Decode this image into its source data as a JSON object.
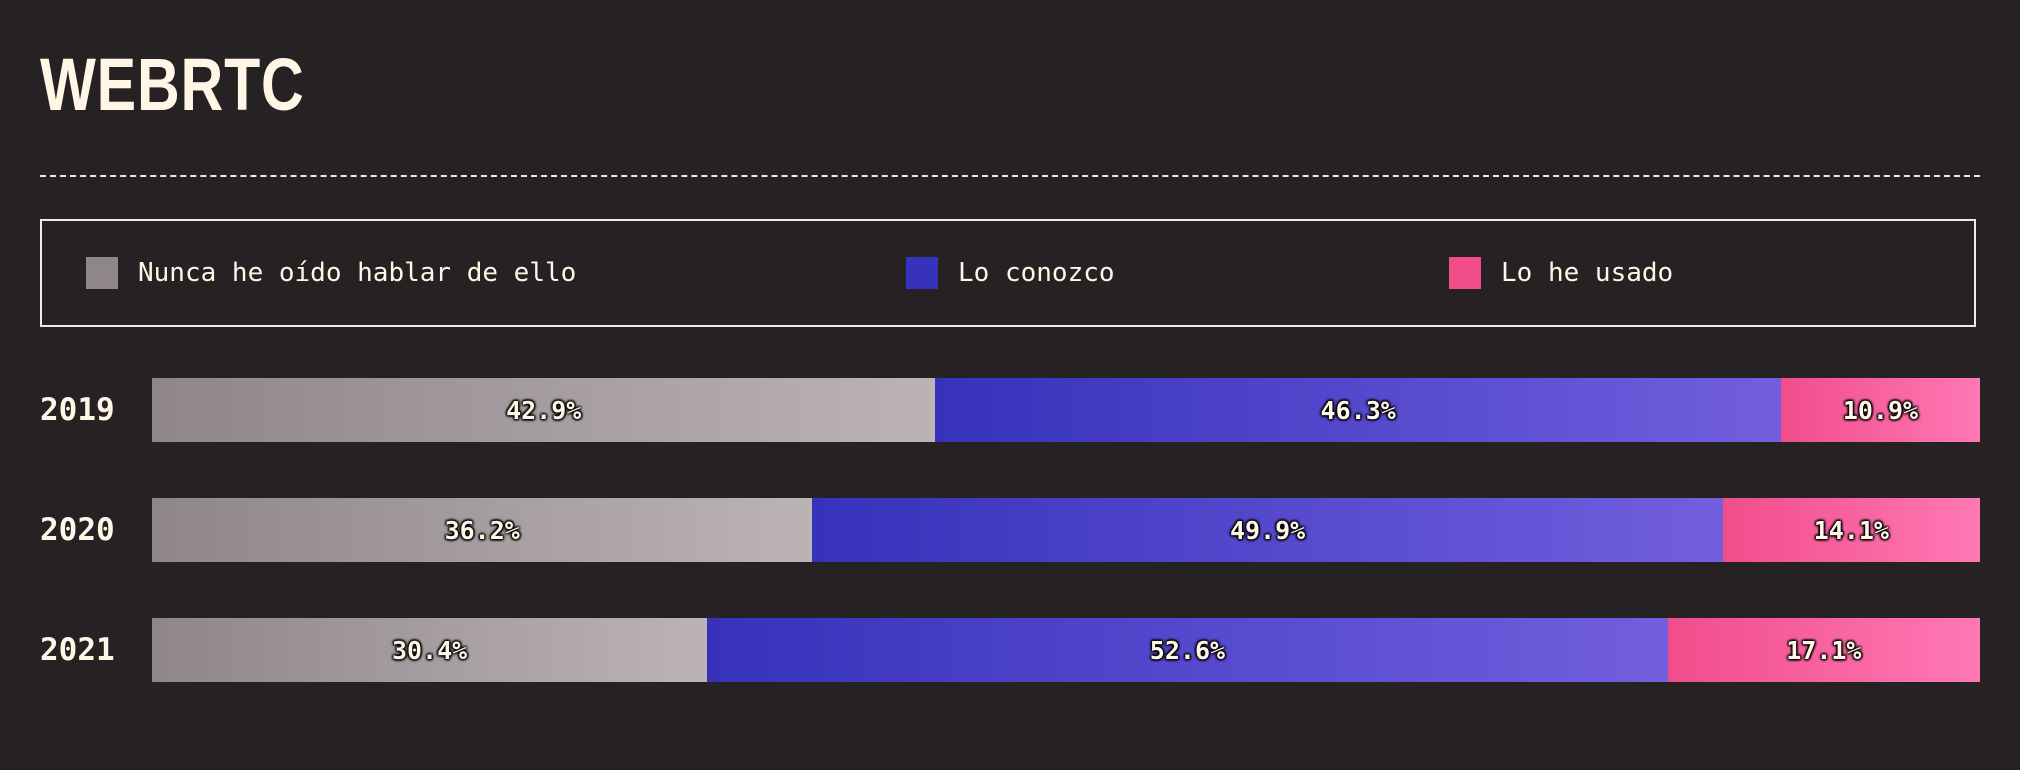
{
  "title": "WEBRTC",
  "chart_data": {
    "type": "bar",
    "orientation": "horizontal",
    "stacked": true,
    "title": "WEBRTC",
    "categories": [
      "2019",
      "2020",
      "2021"
    ],
    "series": [
      {
        "name": "Nunca he oído hablar de ello",
        "color": "#8e868a",
        "gradient": [
          "#8e868a",
          "#bcb3b5"
        ],
        "values": [
          42.9,
          36.2,
          30.4
        ],
        "labels": [
          "42.9%",
          "36.2%",
          "30.4%"
        ]
      },
      {
        "name": "Lo conozco",
        "color": "#3632bb",
        "gradient": [
          "#3632bb",
          "#725fde"
        ],
        "values": [
          46.3,
          49.9,
          52.6
        ],
        "labels": [
          "46.3%",
          "49.9%",
          "52.6%"
        ]
      },
      {
        "name": "Lo he usado",
        "color": "#f14d8b",
        "gradient": [
          "#f14d8b",
          "#ff78b5"
        ],
        "values": [
          10.9,
          14.1,
          17.1
        ],
        "labels": [
          "10.9%",
          "14.1%",
          "17.1%"
        ]
      }
    ],
    "legend": "top",
    "grid": false
  }
}
